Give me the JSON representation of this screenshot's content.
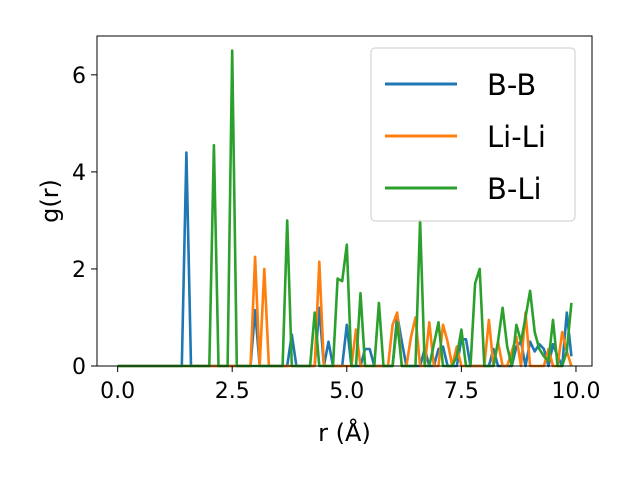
{
  "chart_data": {
    "type": "line",
    "xlabel": "r (Å)",
    "ylabel": "g(r)",
    "xlim": [
      -0.45,
      10.35
    ],
    "ylim": [
      0,
      6.8
    ],
    "xticks": [
      "0.0",
      "2.5",
      "5.0",
      "7.5",
      "10.0"
    ],
    "yticks": [
      "0",
      "2",
      "4",
      "6"
    ],
    "legend_position": "upper-right",
    "colors": {
      "B-B": "#1f77b4",
      "Li-Li": "#ff7f0e",
      "B-Li": "#2ca02c"
    },
    "x": [
      0.0,
      0.1,
      0.2,
      0.3,
      0.4,
      0.5,
      0.6,
      0.7,
      0.8,
      0.9,
      1.0,
      1.1,
      1.2,
      1.3,
      1.4,
      1.5,
      1.6,
      1.7,
      1.8,
      1.9,
      2.0,
      2.1,
      2.2,
      2.3,
      2.4,
      2.5,
      2.6,
      2.7,
      2.8,
      2.9,
      3.0,
      3.1,
      3.2,
      3.3,
      3.4,
      3.5,
      3.6,
      3.7,
      3.8,
      3.9,
      4.0,
      4.1,
      4.2,
      4.3,
      4.4,
      4.5,
      4.6,
      4.7,
      4.8,
      4.9,
      5.0,
      5.1,
      5.2,
      5.3,
      5.4,
      5.5,
      5.6,
      5.7,
      5.8,
      5.9,
      6.0,
      6.1,
      6.2,
      6.3,
      6.4,
      6.5,
      6.6,
      6.7,
      6.8,
      6.9,
      7.0,
      7.1,
      7.2,
      7.3,
      7.4,
      7.5,
      7.6,
      7.7,
      7.8,
      7.9,
      8.0,
      8.1,
      8.2,
      8.3,
      8.4,
      8.5,
      8.6,
      8.7,
      8.8,
      8.9,
      9.0,
      9.1,
      9.2,
      9.3,
      9.4,
      9.5,
      9.6,
      9.7,
      9.8,
      9.9
    ],
    "series": [
      {
        "name": "B-B",
        "values": [
          0,
          0,
          0,
          0,
          0,
          0,
          0,
          0,
          0,
          0,
          0,
          0,
          0,
          0,
          0,
          4.4,
          0,
          0,
          0,
          0,
          0,
          0,
          0,
          0,
          0,
          0,
          0,
          0,
          0,
          0,
          1.15,
          0,
          0,
          0,
          0,
          0,
          0,
          0,
          0.65,
          0,
          0,
          0,
          0,
          0,
          1.2,
          0,
          0.5,
          0,
          0,
          0,
          0.85,
          0,
          0,
          0,
          0.35,
          0.35,
          0,
          0,
          0,
          0,
          0,
          1.05,
          0.5,
          0,
          0,
          0,
          0,
          0.35,
          0,
          0,
          0.35,
          0.4,
          0,
          0,
          0,
          0.55,
          0.55,
          0,
          0,
          0,
          0,
          0,
          0.35,
          0,
          0,
          0,
          0,
          0.4,
          0.5,
          0,
          0.5,
          0.3,
          0.45,
          0.35,
          0,
          0.45,
          0.2,
          0,
          1.1,
          0.2
        ]
      },
      {
        "name": "Li-Li",
        "values": [
          0,
          0,
          0,
          0,
          0,
          0,
          0,
          0,
          0,
          0,
          0,
          0,
          0,
          0,
          0,
          0,
          0,
          0,
          0,
          0,
          0,
          0,
          0,
          0,
          0,
          0,
          0,
          0,
          0,
          0,
          2.25,
          0,
          2.0,
          0,
          0,
          0,
          0,
          0,
          0,
          0,
          0,
          0,
          0,
          0,
          2.15,
          0,
          0,
          0,
          0,
          0,
          0,
          0,
          0.75,
          0,
          0,
          0,
          0,
          0,
          0,
          0,
          0.85,
          1.1,
          0,
          0,
          0.6,
          1.0,
          0,
          0,
          0.9,
          0,
          0,
          0.85,
          0.5,
          0,
          0.4,
          0,
          0,
          0,
          0,
          0,
          0,
          0.95,
          0,
          0.5,
          0,
          0,
          0.3,
          0.6,
          0,
          1.1,
          0,
          0,
          0,
          0,
          0.35,
          0,
          0,
          0.7,
          0.3,
          0
        ]
      },
      {
        "name": "B-Li",
        "values": [
          0,
          0,
          0,
          0,
          0,
          0,
          0,
          0,
          0,
          0,
          0,
          0,
          0,
          0,
          0,
          0,
          0,
          0,
          0,
          0,
          0,
          4.55,
          0,
          0,
          0,
          6.5,
          0,
          0,
          0,
          0,
          0,
          0,
          0,
          0,
          0,
          0,
          0,
          3.0,
          0,
          0,
          0,
          0,
          0,
          1.1,
          0,
          0,
          0,
          0,
          1.8,
          1.75,
          2.5,
          0,
          0,
          1.5,
          0,
          0,
          0,
          1.3,
          0,
          0,
          0,
          0.9,
          0,
          0,
          0,
          0,
          3.0,
          0,
          0,
          0.45,
          0.9,
          0,
          0,
          0,
          0.2,
          0.75,
          0,
          0,
          1.7,
          2.0,
          0,
          0,
          0,
          0.5,
          1.2,
          0.4,
          0,
          0.85,
          0.5,
          1.0,
          1.55,
          0.7,
          0.35,
          0.2,
          0.1,
          0.95,
          0,
          0,
          0.3,
          1.3
        ]
      }
    ]
  }
}
